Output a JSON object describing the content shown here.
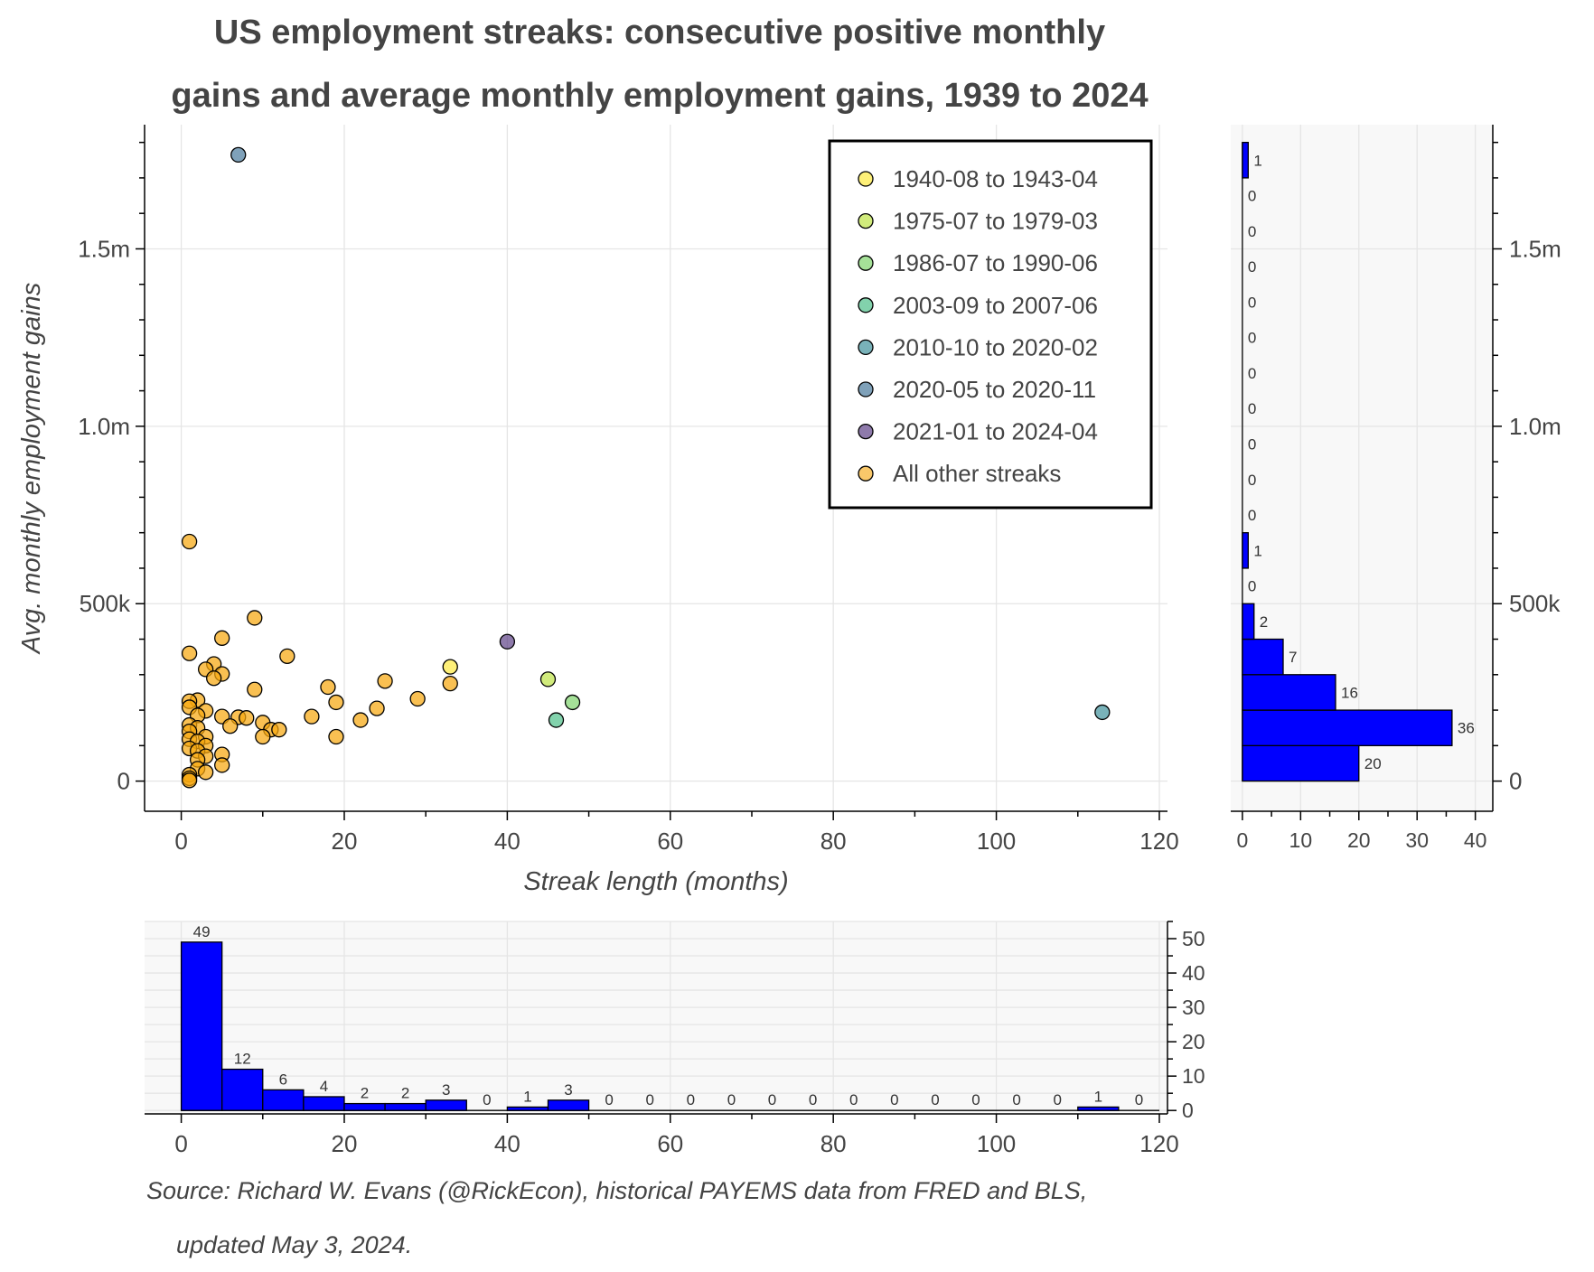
{
  "chart_data": [
    {
      "type": "scatter",
      "title": [
        "US employment streaks: consecutive positive monthly",
        "gains and average monthly employment gains, 1939 to 2024"
      ],
      "xlabel": "Streak length (months)",
      "ylabel": "Avg. monthly employment gains",
      "xlim": [
        -4.5,
        121
      ],
      "ylim": [
        -85000,
        1850000
      ],
      "x_ticks": [
        0,
        20,
        40,
        60,
        80,
        100,
        120
      ],
      "x_tick_labels": [
        "0",
        "20",
        "40",
        "60",
        "80",
        "100",
        "120"
      ],
      "y_ticks": [
        0,
        500000,
        1000000,
        1500000
      ],
      "y_tick_labels": [
        "0",
        "500k",
        "1.0m",
        "1.5m"
      ],
      "grid": true,
      "legend_placement": "top-right",
      "series": [
        {
          "name": "1940-08 to 1943-04",
          "color": "#fde725",
          "points": [
            [
              33,
              322000
            ]
          ]
        },
        {
          "name": "1975-07 to 1979-03",
          "color": "#b5de2b",
          "points": [
            [
              45,
              287000
            ]
          ]
        },
        {
          "name": "1986-07 to 1990-06",
          "color": "#6ece58",
          "points": [
            [
              48,
              222000
            ]
          ]
        },
        {
          "name": "2003-09 to 2007-06",
          "color": "#35b779",
          "points": [
            [
              46,
              172000
            ]
          ]
        },
        {
          "name": "2010-10 to 2020-02",
          "color": "#26828e",
          "points": [
            [
              113,
              194000
            ]
          ]
        },
        {
          "name": "2020-05 to 2020-11",
          "color": "#31688e",
          "points": [
            [
              7,
              1765000
            ]
          ]
        },
        {
          "name": "2021-01 to 2024-04",
          "color": "#482878",
          "points": [
            [
              40,
              393000
            ]
          ]
        },
        {
          "name": "All other streaks",
          "color": "#f6a70f",
          "points": [
            [
              1,
              675000
            ],
            [
              9,
              460000
            ],
            [
              5,
              403000
            ],
            [
              1,
              360000
            ],
            [
              13,
              352000
            ],
            [
              4,
              330000
            ],
            [
              3,
              315000
            ],
            [
              5,
              302000
            ],
            [
              4,
              290000
            ],
            [
              33,
              275000
            ],
            [
              25,
              282000
            ],
            [
              18,
              265000
            ],
            [
              9,
              258000
            ],
            [
              2,
              228000
            ],
            [
              1,
              225000
            ],
            [
              19,
              222000
            ],
            [
              29,
              232000
            ],
            [
              24,
              205000
            ],
            [
              3,
              198000
            ],
            [
              1,
              208000
            ],
            [
              16,
              182000
            ],
            [
              5,
              182000
            ],
            [
              7,
              180000
            ],
            [
              8,
              178000
            ],
            [
              2,
              185000
            ],
            [
              22,
              172000
            ],
            [
              10,
              165000
            ],
            [
              6,
              155000
            ],
            [
              1,
              158000
            ],
            [
              2,
              150000
            ],
            [
              11,
              145000
            ],
            [
              12,
              145000
            ],
            [
              1,
              140000
            ],
            [
              3,
              125000
            ],
            [
              10,
              125000
            ],
            [
              19,
              125000
            ],
            [
              1,
              118000
            ],
            [
              2,
              112000
            ],
            [
              3,
              100000
            ],
            [
              1,
              92000
            ],
            [
              2,
              85000
            ],
            [
              5,
              75000
            ],
            [
              3,
              70000
            ],
            [
              2,
              60000
            ],
            [
              5,
              45000
            ],
            [
              2,
              35000
            ],
            [
              3,
              25000
            ],
            [
              1,
              18000
            ],
            [
              1,
              8000
            ],
            [
              1,
              2000
            ]
          ]
        }
      ]
    },
    {
      "type": "bar",
      "orientation": "horizontal",
      "description": "histogram of avg. monthly employment gains",
      "bin_width": 100000,
      "bins_start": [
        0,
        100000,
        200000,
        300000,
        400000,
        500000,
        600000,
        700000,
        800000,
        900000,
        1000000,
        1100000,
        1200000,
        1300000,
        1400000,
        1500000,
        1600000,
        1700000
      ],
      "values": [
        20,
        36,
        16,
        7,
        2,
        0,
        1,
        0,
        0,
        0,
        0,
        0,
        0,
        0,
        0,
        0,
        0,
        1
      ],
      "value_labels": [
        "20",
        "36",
        "16",
        "7",
        "2",
        "0",
        "1",
        "0",
        "0",
        "0",
        "0",
        "0",
        "0",
        "0",
        "0",
        "0",
        "0",
        "1"
      ],
      "xlim": [
        -2,
        43
      ],
      "x_ticks": [
        0,
        10,
        20,
        30,
        40
      ],
      "x_tick_labels": [
        "0",
        "10",
        "20",
        "30",
        "40"
      ],
      "y_tick_labels": [
        "0",
        "500k",
        "1.0m",
        "1.5m"
      ],
      "color": "#0000ff"
    },
    {
      "type": "bar",
      "description": "histogram of streak length (months)",
      "bin_width": 5,
      "bins_start": [
        0,
        5,
        10,
        15,
        20,
        25,
        30,
        35,
        40,
        45,
        50,
        55,
        60,
        65,
        70,
        75,
        80,
        85,
        90,
        95,
        100,
        105,
        110,
        115
      ],
      "values": [
        49,
        12,
        6,
        4,
        2,
        2,
        3,
        0,
        1,
        3,
        0,
        0,
        0,
        0,
        0,
        0,
        0,
        0,
        0,
        0,
        0,
        0,
        1,
        0
      ],
      "value_labels": [
        "49",
        "12",
        "6",
        "4",
        "2",
        "2",
        "3",
        "0",
        "1",
        "3",
        "0",
        "0",
        "0",
        "0",
        "0",
        "0",
        "0",
        "0",
        "0",
        "0",
        "0",
        "0",
        "1",
        "0"
      ],
      "ylim": [
        -1,
        55
      ],
      "y_ticks": [
        0,
        10,
        20,
        30,
        40,
        50
      ],
      "y_tick_labels": [
        "0",
        "10",
        "20",
        "30",
        "40",
        "50"
      ],
      "x_tick_labels": [
        "0",
        "20",
        "40",
        "60",
        "80",
        "100",
        "120"
      ],
      "color": "#0000ff"
    }
  ],
  "source": [
    "Source: Richard W. Evans (@RickEcon), historical PAYEMS data from FRED and BLS,",
    "updated May 3, 2024."
  ]
}
